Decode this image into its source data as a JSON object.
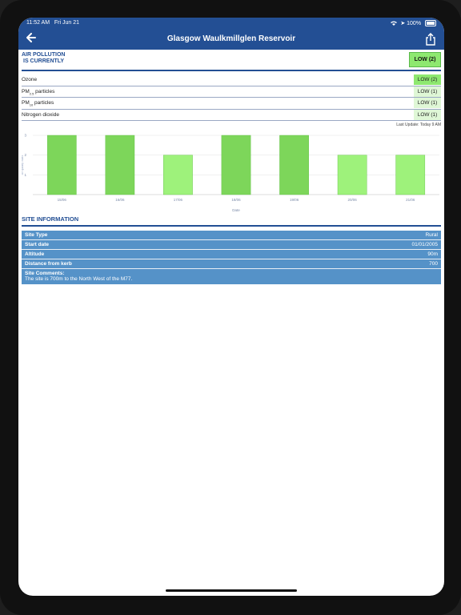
{
  "status_bar": {
    "time": "11:52 AM",
    "date": "Fri Jun 21",
    "battery": "100%"
  },
  "nav": {
    "title": "Glasgow Waulkmillglen Reservoir"
  },
  "air_quality": {
    "title_line1": "AIR POLLUTION",
    "title_line2": "IS CURRENTLY",
    "overall": "LOW (2)",
    "pollutants": [
      {
        "name": "Ozone",
        "sub": "",
        "suffix": "",
        "value": "LOW (2)",
        "level": "strong"
      },
      {
        "name": "PM",
        "sub": "2.5",
        "suffix": " particles",
        "value": "LOW (1)",
        "level": "light"
      },
      {
        "name": "PM",
        "sub": "10",
        "suffix": " particles",
        "value": "LOW (1)",
        "level": "light"
      },
      {
        "name": "Nitrogen dioxide",
        "sub": "",
        "suffix": "",
        "value": "LOW (1)",
        "level": "light"
      }
    ],
    "last_update": "Last Update: Today 9 AM"
  },
  "chart_data": {
    "type": "bar",
    "categories": [
      "15/06",
      "16/06",
      "17/06",
      "18/06",
      "19/06",
      "20/06",
      "21/06"
    ],
    "values": [
      3,
      3,
      2,
      3,
      3,
      2,
      2
    ],
    "xlabel": "Date",
    "ylabel": "Air quality index",
    "ylim": [
      0,
      3
    ],
    "yticks": [
      "1",
      "2",
      "3"
    ],
    "colors": {
      "high": "#7dd65a",
      "low": "#9ef27b"
    }
  },
  "site_info": {
    "title": "SITE INFORMATION",
    "rows": [
      {
        "key": "Site Type",
        "value": "Rural"
      },
      {
        "key": "Start date",
        "value": "01/01/2005"
      },
      {
        "key": "Altitude",
        "value": "90m"
      },
      {
        "key": "Distance from kerb",
        "value": "700"
      }
    ],
    "comments_label": "Site Comments:",
    "comments": "The site is 700m to the North West of the M77."
  },
  "colors": {
    "header_blue": "#234f94",
    "table_blue": "#5592c8",
    "badge_green": "#8ee870"
  }
}
